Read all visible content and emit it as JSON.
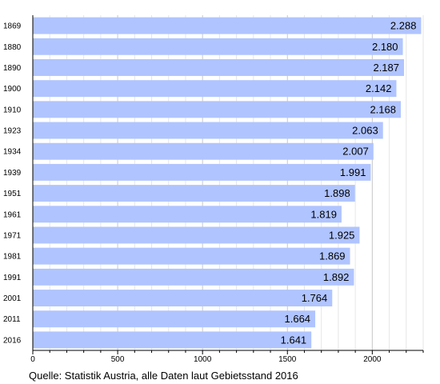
{
  "chart_data": {
    "type": "bar",
    "orientation": "horizontal",
    "categories": [
      "1869",
      "1880",
      "1890",
      "1900",
      "1910",
      "1923",
      "1934",
      "1939",
      "1951",
      "1961",
      "1971",
      "1981",
      "1991",
      "2001",
      "2011",
      "2016"
    ],
    "values": [
      2288,
      2180,
      2187,
      2142,
      2168,
      2063,
      2007,
      1991,
      1898,
      1819,
      1925,
      1869,
      1892,
      1764,
      1664,
      1641
    ],
    "value_labels": [
      "2.288",
      "2.180",
      "2.187",
      "2.142",
      "2.168",
      "2.063",
      "2.007",
      "1.991",
      "1.898",
      "1.819",
      "1.925",
      "1.869",
      "1.892",
      "1.764",
      "1.664",
      "1.641"
    ],
    "xticks": [
      0,
      500,
      1000,
      1500,
      2000
    ],
    "xtick_labels": [
      "0",
      "500",
      "1000",
      "1500",
      "2000"
    ],
    "xlim": [
      0,
      2300
    ],
    "grid": true,
    "bar_color": "#b0c4ff",
    "source": "Quelle: Statistik Austria, alle Daten laut Gebietsstand 2016"
  }
}
